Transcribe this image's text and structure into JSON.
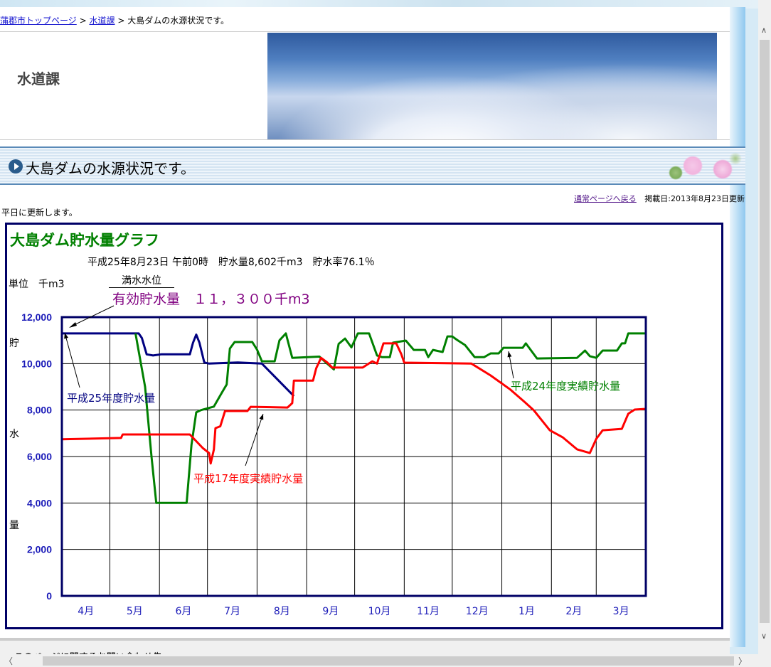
{
  "breadcrumb": {
    "items": [
      "蒲郡市トップページ",
      "水道課"
    ],
    "current": "大島ダムの水源状況です。",
    "sep": ">"
  },
  "header": {
    "department": "水道課"
  },
  "page_title": "大島ダムの水源状況です。",
  "meta": {
    "back_link": "通常ページへ戻る",
    "posted": "掲載日:2013年8月23日更新"
  },
  "note": "平日に更新します。",
  "footer": {
    "heading": "このページに関するお問い合わせ先"
  },
  "scroll": {
    "up": "∧",
    "down": "∨",
    "left": "〈",
    "right": "〉"
  },
  "chart_data": {
    "type": "line",
    "title": "大島ダム貯水量グラフ",
    "status": "平成25年8月23日 午前0時　貯水量8,602千m3　貯水率76.1％",
    "unit_label": "単位　千m3",
    "full_level_label": "満水水位",
    "capacity_label": "有効貯水量　１１，３００千m3",
    "ylabel": [
      "貯",
      "水",
      "量"
    ],
    "ylim": [
      0,
      12000
    ],
    "yticks": [
      "0",
      "2,000",
      "4,000",
      "6,000",
      "8,000",
      "10,000",
      "12,000"
    ],
    "x_unit": "days from April 1",
    "xlim": [
      0,
      365
    ],
    "month_starts": [
      0,
      30,
      61,
      91,
      122,
      153,
      183,
      214,
      244,
      275,
      306,
      334,
      365
    ],
    "categories": [
      "4月",
      "5月",
      "6月",
      "7月",
      "8月",
      "9月",
      "10月",
      "11月",
      "12月",
      "1月",
      "2月",
      "3月"
    ],
    "grid": true,
    "series": [
      {
        "name": "平成25年度貯水量",
        "color": "#000080",
        "points": [
          [
            0,
            11300
          ],
          [
            48,
            11300
          ],
          [
            50,
            11100
          ],
          [
            53,
            10400
          ],
          [
            57,
            10350
          ],
          [
            62,
            10400
          ],
          [
            80,
            10400
          ],
          [
            82,
            10900
          ],
          [
            84,
            11250
          ],
          [
            86,
            10900
          ],
          [
            89,
            10050
          ],
          [
            92,
            10000
          ],
          [
            110,
            10050
          ],
          [
            125,
            10000
          ],
          [
            145,
            8600
          ]
        ]
      },
      {
        "name": "平成24年度実績貯水量",
        "color": "#008000",
        "points": [
          [
            46,
            11300
          ],
          [
            52,
            9000
          ],
          [
            56,
            6000
          ],
          [
            59,
            4000
          ],
          [
            78,
            4000
          ],
          [
            81,
            6500
          ],
          [
            84,
            7900
          ],
          [
            87,
            8000
          ],
          [
            95,
            8150
          ],
          [
            100,
            8750
          ],
          [
            103,
            9100
          ],
          [
            105,
            10650
          ],
          [
            108,
            10930
          ],
          [
            119,
            10930
          ],
          [
            122,
            10600
          ],
          [
            125,
            10100
          ],
          [
            133,
            10100
          ],
          [
            136,
            11000
          ],
          [
            140,
            11300
          ],
          [
            144,
            10250
          ],
          [
            161,
            10300
          ],
          [
            165,
            10050
          ],
          [
            170,
            9750
          ],
          [
            173,
            10850
          ],
          [
            177,
            11080
          ],
          [
            181,
            10700
          ],
          [
            185,
            11300
          ],
          [
            192,
            11300
          ],
          [
            197,
            10350
          ],
          [
            200,
            10280
          ],
          [
            205,
            10280
          ],
          [
            207,
            10900
          ],
          [
            215,
            10990
          ],
          [
            220,
            10590
          ],
          [
            227,
            10590
          ],
          [
            229,
            10280
          ],
          [
            232,
            10590
          ],
          [
            238,
            10500
          ],
          [
            241,
            11170
          ],
          [
            244,
            11170
          ],
          [
            247,
            11020
          ],
          [
            252,
            10800
          ],
          [
            258,
            10280
          ],
          [
            264,
            10280
          ],
          [
            268,
            10440
          ],
          [
            273,
            10440
          ],
          [
            276,
            10680
          ],
          [
            288,
            10680
          ],
          [
            290,
            10870
          ],
          [
            297,
            10220
          ],
          [
            322,
            10250
          ],
          [
            327,
            10560
          ],
          [
            330,
            10320
          ],
          [
            334,
            10250
          ],
          [
            338,
            10560
          ],
          [
            347,
            10560
          ],
          [
            350,
            10870
          ],
          [
            352,
            10870
          ],
          [
            354,
            11300
          ],
          [
            365,
            11300
          ]
        ]
      },
      {
        "name": "平成17年度実績貯水量",
        "color": "#ff0000",
        "points": [
          [
            0,
            6740
          ],
          [
            37,
            6800
          ],
          [
            38,
            6950
          ],
          [
            80,
            6950
          ],
          [
            88,
            6370
          ],
          [
            92,
            6150
          ],
          [
            93,
            5700
          ],
          [
            95,
            6300
          ],
          [
            96,
            7220
          ],
          [
            99,
            7300
          ],
          [
            102,
            7960
          ],
          [
            116,
            7960
          ],
          [
            118,
            8140
          ],
          [
            141,
            8110
          ],
          [
            144,
            8300
          ],
          [
            145,
            9270
          ],
          [
            157,
            9270
          ],
          [
            159,
            9800
          ],
          [
            162,
            10250
          ],
          [
            166,
            10040
          ],
          [
            169,
            9830
          ],
          [
            188,
            9830
          ],
          [
            194,
            10100
          ],
          [
            197,
            10000
          ],
          [
            201,
            10870
          ],
          [
            209,
            10870
          ],
          [
            212,
            10430
          ],
          [
            214,
            10040
          ],
          [
            256,
            10000
          ],
          [
            268,
            9490
          ],
          [
            280,
            8900
          ],
          [
            289,
            8360
          ],
          [
            295,
            7990
          ],
          [
            305,
            7130
          ],
          [
            313,
            6830
          ],
          [
            322,
            6310
          ],
          [
            330,
            6150
          ],
          [
            334,
            6760
          ],
          [
            338,
            7130
          ],
          [
            350,
            7190
          ],
          [
            354,
            7840
          ],
          [
            358,
            8020
          ],
          [
            365,
            8050
          ]
        ]
      }
    ]
  }
}
